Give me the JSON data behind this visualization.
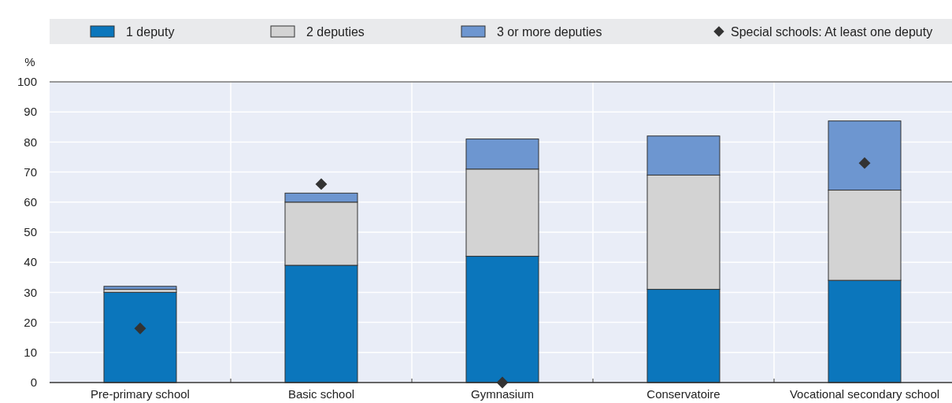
{
  "chart_data": {
    "type": "bar",
    "stacked": true,
    "ylabel": "%",
    "categories": [
      "Pre-primary school",
      "Basic school",
      "Gymnasium",
      "Conservatoire",
      "Vocational secondary school"
    ],
    "series": [
      {
        "name": "1 deputy",
        "color": "#0b76bc",
        "values": [
          30,
          39,
          42,
          31,
          34
        ]
      },
      {
        "name": "2 deputies",
        "color": "#d3d3d3",
        "values": [
          1,
          21,
          29,
          38,
          30
        ]
      },
      {
        "name": "3 or more deputies",
        "color": "#6d96d0",
        "values": [
          1,
          3,
          10,
          13,
          23
        ]
      },
      {
        "name": "Special schools: At least one deputy",
        "type": "scatter",
        "color": "#333333",
        "marker": "diamond",
        "values": [
          18,
          66,
          0,
          null,
          73
        ]
      }
    ],
    "ylim": [
      0,
      100
    ],
    "yticks": [
      0,
      10,
      20,
      30,
      40,
      50,
      60,
      70,
      80,
      90,
      100
    ],
    "grid": true,
    "legend": "top"
  }
}
